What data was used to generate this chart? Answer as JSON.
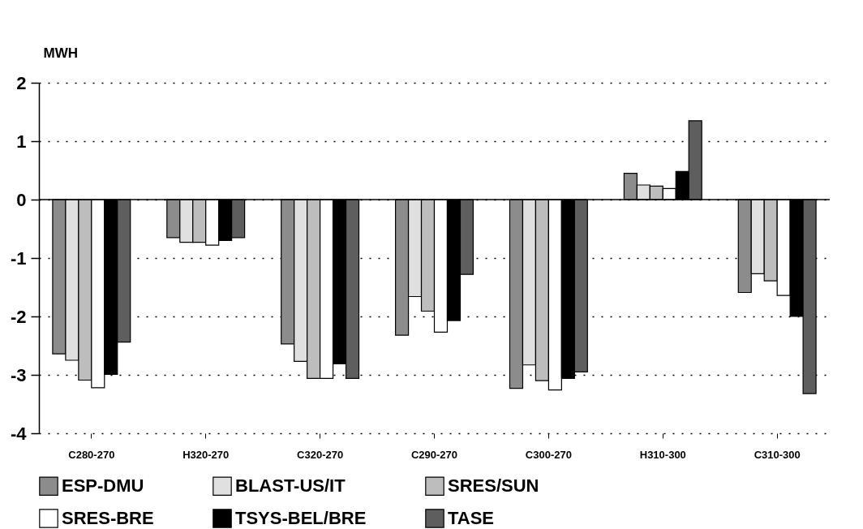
{
  "chart_data": {
    "type": "bar",
    "ylabel": "MWH",
    "categories": [
      "C280-270",
      "H320-270",
      "C320-270",
      "C290-270",
      "C300-270",
      "H310-300",
      "C310-300"
    ],
    "series": [
      {
        "name": "ESP-DMU",
        "color": "#8c8c8c",
        "values": [
          -2.64,
          -0.65,
          -2.47,
          -2.32,
          -3.23,
          0.45,
          -1.59
        ]
      },
      {
        "name": "BLAST-US/IT",
        "color": "#e0e0e0",
        "values": [
          -2.75,
          -0.73,
          -2.77,
          -1.66,
          -2.83,
          0.25,
          -1.27
        ]
      },
      {
        "name": "SRES/SUN",
        "color": "#bdbdbd",
        "values": [
          -3.09,
          -0.73,
          -3.06,
          -1.91,
          -3.1,
          0.23,
          -1.39
        ]
      },
      {
        "name": "SRES-BRE",
        "color": "#ffffff",
        "values": [
          -3.22,
          -0.78,
          -3.06,
          -2.27,
          -3.26,
          0.19,
          -1.64
        ]
      },
      {
        "name": "TSYS-BEL/BRE",
        "color": "#000000",
        "values": [
          -2.99,
          -0.7,
          -2.81,
          -2.07,
          -3.06,
          0.48,
          -2.0
        ]
      },
      {
        "name": "TASE",
        "color": "#5e5e5e",
        "values": [
          -2.44,
          -0.65,
          -3.06,
          -1.28,
          -2.95,
          1.35,
          -3.32
        ]
      }
    ],
    "ylim": [
      -4,
      2
    ],
    "yticks": [
      -4,
      -3,
      -2,
      -1,
      0,
      1,
      2
    ],
    "grid": "y",
    "legend": "bottom",
    "ref_lines": [
      {
        "axis": "y",
        "value": 0
      }
    ]
  }
}
